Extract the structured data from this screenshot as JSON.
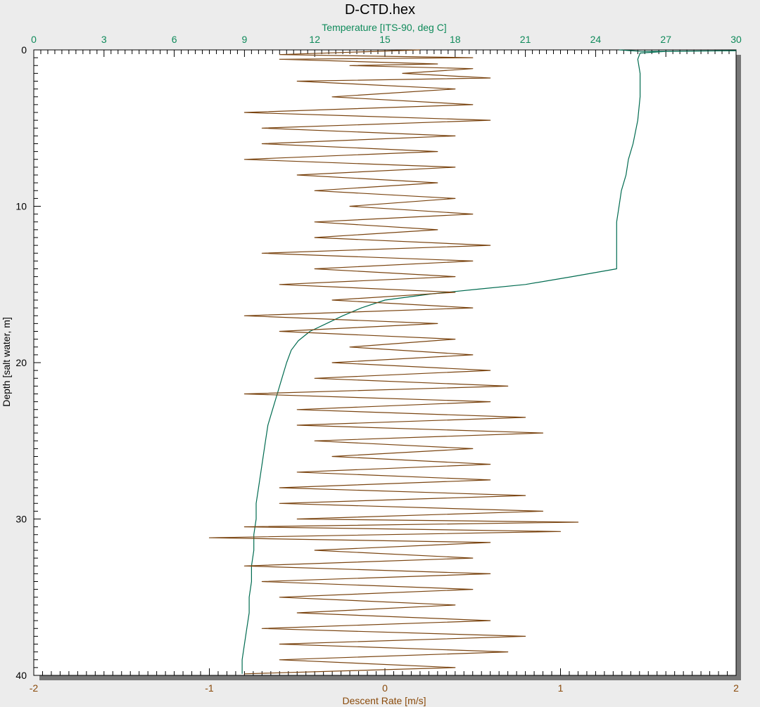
{
  "chart_data": {
    "type": "line",
    "title": "D-CTD.hex",
    "orientation": "vertical-profile",
    "y_axis": {
      "label": "Depth [salt water, m]",
      "range": [
        0,
        40
      ],
      "inverted": true,
      "ticks": [
        0,
        10,
        20,
        30,
        40
      ],
      "tick_labels": [
        "0",
        "10",
        "20",
        "30",
        "40"
      ]
    },
    "x_axis_top": {
      "label": "Temperature [ITS-90, deg C]",
      "range": [
        0,
        30
      ],
      "ticks": [
        0,
        3,
        6,
        9,
        12,
        15,
        18,
        21,
        24,
        27,
        30
      ],
      "tick_labels": [
        "0",
        "3",
        "6",
        "9",
        "12",
        "15",
        "18",
        "21",
        "24",
        "27",
        "30"
      ],
      "color": "#0f8a5a"
    },
    "x_axis_bottom": {
      "label": "Descent Rate [m/s]",
      "range": [
        -2,
        2
      ],
      "ticks": [
        -2,
        -1,
        0,
        1,
        2
      ],
      "tick_labels": [
        "-2",
        "-1",
        "0",
        "1",
        "2"
      ],
      "color": "#8a4a0a"
    },
    "grid": false,
    "series": [
      {
        "variable": "temperature",
        "axis": "top",
        "color": "#006b50",
        "points": [
          [
            25.0,
            0.0
          ],
          [
            26.0,
            0.1
          ],
          [
            30.0,
            0.05
          ],
          [
            27.0,
            0.1
          ],
          [
            25.9,
            0.2
          ],
          [
            25.8,
            0.6
          ],
          [
            25.9,
            1.5
          ],
          [
            25.9,
            3.0
          ],
          [
            25.8,
            4.5
          ],
          [
            25.6,
            6.0
          ],
          [
            25.4,
            7.0
          ],
          [
            25.3,
            8.0
          ],
          [
            25.1,
            9.0
          ],
          [
            25.0,
            10.0
          ],
          [
            24.9,
            11.0
          ],
          [
            24.9,
            12.0
          ],
          [
            24.9,
            13.0
          ],
          [
            24.9,
            14.0
          ],
          [
            23.0,
            14.5
          ],
          [
            21.0,
            15.0
          ],
          [
            19.0,
            15.3
          ],
          [
            17.0,
            15.6
          ],
          [
            15.0,
            16.0
          ],
          [
            14.0,
            16.5
          ],
          [
            13.2,
            17.0
          ],
          [
            12.5,
            17.5
          ],
          [
            11.8,
            18.0
          ],
          [
            11.3,
            18.6
          ],
          [
            11.0,
            19.2
          ],
          [
            10.8,
            20.0
          ],
          [
            10.6,
            21.0
          ],
          [
            10.4,
            22.0
          ],
          [
            10.2,
            23.0
          ],
          [
            10.0,
            24.0
          ],
          [
            9.9,
            25.0
          ],
          [
            9.8,
            26.0
          ],
          [
            9.7,
            27.0
          ],
          [
            9.6,
            28.0
          ],
          [
            9.5,
            29.0
          ],
          [
            9.5,
            30.0
          ],
          [
            9.4,
            31.0
          ],
          [
            9.4,
            32.0
          ],
          [
            9.3,
            33.0
          ],
          [
            9.3,
            34.0
          ],
          [
            9.2,
            35.0
          ],
          [
            9.2,
            36.0
          ],
          [
            9.1,
            37.0
          ],
          [
            9.0,
            38.0
          ],
          [
            8.9,
            39.0
          ],
          [
            8.9,
            39.9
          ]
        ]
      },
      {
        "variable": "descent_rate",
        "axis": "bottom",
        "color": "#7a4410",
        "points": [
          [
            0.2,
            0.0
          ],
          [
            -0.6,
            0.3
          ],
          [
            0.5,
            0.5
          ],
          [
            -0.6,
            0.6
          ],
          [
            0.3,
            0.9
          ],
          [
            -0.2,
            1.0
          ],
          [
            0.5,
            1.2
          ],
          [
            0.1,
            1.5
          ],
          [
            0.6,
            1.8
          ],
          [
            -0.5,
            2.0
          ],
          [
            0.4,
            2.5
          ],
          [
            -0.3,
            3.0
          ],
          [
            0.5,
            3.5
          ],
          [
            -0.8,
            4.0
          ],
          [
            0.6,
            4.5
          ],
          [
            -0.7,
            5.0
          ],
          [
            0.4,
            5.5
          ],
          [
            -0.7,
            6.0
          ],
          [
            0.3,
            6.5
          ],
          [
            -0.8,
            7.0
          ],
          [
            0.4,
            7.5
          ],
          [
            -0.5,
            8.0
          ],
          [
            0.3,
            8.5
          ],
          [
            -0.4,
            9.0
          ],
          [
            0.4,
            9.5
          ],
          [
            -0.2,
            10.0
          ],
          [
            0.5,
            10.5
          ],
          [
            -0.4,
            11.0
          ],
          [
            0.3,
            11.5
          ],
          [
            -0.4,
            12.0
          ],
          [
            0.6,
            12.5
          ],
          [
            -0.7,
            13.0
          ],
          [
            0.5,
            13.5
          ],
          [
            -0.4,
            14.0
          ],
          [
            0.4,
            14.5
          ],
          [
            -0.6,
            15.0
          ],
          [
            0.4,
            15.5
          ],
          [
            -0.3,
            16.0
          ],
          [
            0.5,
            16.5
          ],
          [
            -0.8,
            17.0
          ],
          [
            0.3,
            17.5
          ],
          [
            -0.6,
            18.0
          ],
          [
            0.4,
            18.5
          ],
          [
            -0.2,
            19.0
          ],
          [
            0.5,
            19.5
          ],
          [
            -0.3,
            20.0
          ],
          [
            0.6,
            20.5
          ],
          [
            -0.4,
            21.0
          ],
          [
            0.7,
            21.5
          ],
          [
            -0.8,
            22.0
          ],
          [
            0.6,
            22.5
          ],
          [
            -0.5,
            23.0
          ],
          [
            0.8,
            23.5
          ],
          [
            -0.5,
            24.0
          ],
          [
            0.9,
            24.5
          ],
          [
            -0.4,
            25.0
          ],
          [
            0.5,
            25.5
          ],
          [
            -0.3,
            26.0
          ],
          [
            0.6,
            26.5
          ],
          [
            -0.5,
            27.0
          ],
          [
            0.6,
            27.5
          ],
          [
            -0.6,
            28.0
          ],
          [
            0.8,
            28.5
          ],
          [
            -0.6,
            29.0
          ],
          [
            0.9,
            29.5
          ],
          [
            -0.5,
            30.0
          ],
          [
            1.1,
            30.2
          ],
          [
            -0.8,
            30.5
          ],
          [
            1.0,
            30.8
          ],
          [
            -1.0,
            31.2
          ],
          [
            0.6,
            31.5
          ],
          [
            -0.4,
            32.0
          ],
          [
            0.5,
            32.5
          ],
          [
            -0.8,
            33.0
          ],
          [
            0.6,
            33.5
          ],
          [
            -0.7,
            34.0
          ],
          [
            0.5,
            34.5
          ],
          [
            -0.6,
            35.0
          ],
          [
            0.4,
            35.5
          ],
          [
            -0.5,
            36.0
          ],
          [
            0.6,
            36.5
          ],
          [
            -0.7,
            37.0
          ],
          [
            0.8,
            37.5
          ],
          [
            -0.6,
            38.0
          ],
          [
            0.7,
            38.5
          ],
          [
            -0.6,
            39.0
          ],
          [
            0.4,
            39.5
          ],
          [
            -0.8,
            39.9
          ]
        ]
      }
    ]
  }
}
